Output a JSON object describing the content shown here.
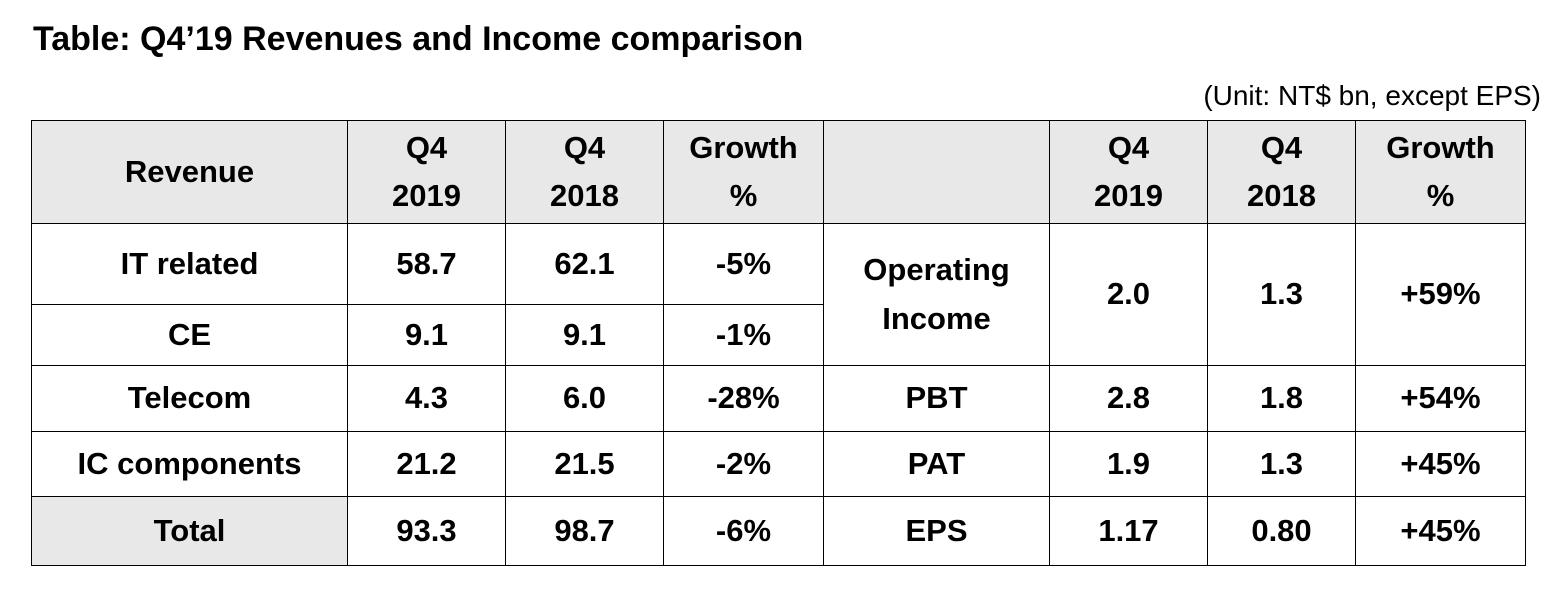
{
  "title": "Table: Q4’19 Revenues and Income comparison",
  "unit": "(Unit: NT$ bn, except EPS)",
  "header": {
    "revenue": "Revenue",
    "q4_2019_line1": "Q4",
    "q4_2019_line2": "2019",
    "q4_2018_line1": "Q4",
    "q4_2018_line2": "2018",
    "growth_line1": "Growth",
    "growth_line2": "%",
    "blank": "",
    "q4_2019b_line1": "Q4",
    "q4_2019b_line2": "2019",
    "q4_2018b_line1": "Q4",
    "q4_2018b_line2": "2018",
    "growthb_line1": "Growth",
    "growthb_line2": "%"
  },
  "revenue_rows": [
    {
      "label": "IT related",
      "q4_2019": "58.7",
      "q4_2018": "62.1",
      "growth": "-5%"
    },
    {
      "label": "CE",
      "q4_2019": "9.1",
      "q4_2018": "9.1",
      "growth": "-1%"
    },
    {
      "label": "Telecom",
      "q4_2019": "4.3",
      "q4_2018": "6.0",
      "growth": "-28%"
    },
    {
      "label": "IC components",
      "q4_2019": "21.2",
      "q4_2018": "21.5",
      "growth": "-2%"
    },
    {
      "label": "Total",
      "q4_2019": "93.3",
      "q4_2018": "98.7",
      "growth": "-6%"
    }
  ],
  "income_rows": [
    {
      "label_line1": "Operating",
      "label_line2": "Income",
      "q4_2019": "2.0",
      "q4_2018": "1.3",
      "growth": "+59%"
    },
    {
      "label": "PBT",
      "q4_2019": "2.8",
      "q4_2018": "1.8",
      "growth": "+54%"
    },
    {
      "label": "PAT",
      "q4_2019": "1.9",
      "q4_2018": "1.3",
      "growth": "+45%"
    },
    {
      "label": "EPS",
      "q4_2019": "1.17",
      "q4_2018": "0.80",
      "growth": "+45%"
    }
  ],
  "colors": {
    "header_background": "#e8e8e8",
    "border": "#000000"
  }
}
